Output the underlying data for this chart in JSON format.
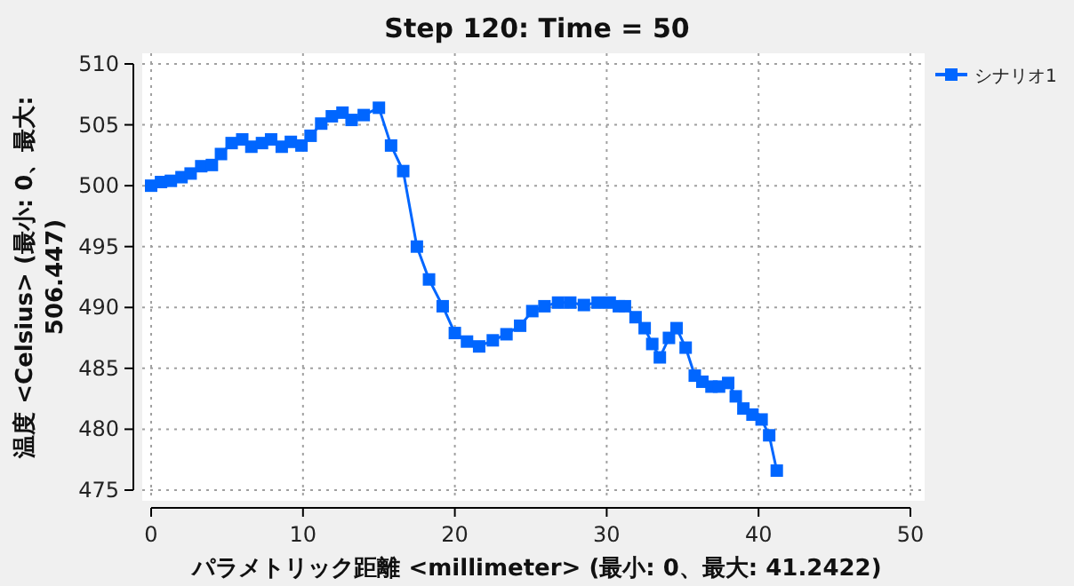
{
  "chart_data": {
    "type": "line",
    "title": "Step 120: Time = 50",
    "xlabel": "パラメトリック距離 <millimeter> (最小: 0、最大: 41.2422)",
    "ylabel": "温度 <Celsius> (最小: 0、最大: 506.447)",
    "xlim": [
      0,
      50
    ],
    "ylim": [
      475,
      510
    ],
    "xticks": [
      0,
      10,
      20,
      30,
      40,
      50
    ],
    "yticks": [
      475,
      480,
      485,
      490,
      495,
      500,
      505,
      510
    ],
    "grid": true,
    "legend": "top right",
    "marker": "square",
    "line_style": "solid",
    "series": [
      {
        "name": "シナリオ1",
        "color": "#0066ff",
        "x": [
          0,
          0.65,
          1.3,
          2.0,
          2.6,
          3.3,
          4.0,
          4.6,
          5.3,
          6.0,
          6.6,
          7.3,
          7.9,
          8.6,
          9.2,
          9.9,
          10.5,
          11.2,
          11.9,
          12.6,
          13.2,
          14.0,
          15.0,
          15.8,
          16.6,
          17.5,
          18.3,
          19.2,
          20.0,
          20.8,
          21.6,
          22.5,
          23.4,
          24.3,
          25.1,
          25.9,
          26.8,
          27.6,
          28.5,
          29.4,
          30.2,
          30.8,
          31.2,
          31.9,
          32.5,
          33.0,
          33.5,
          34.1,
          34.6,
          35.2,
          35.8,
          36.3,
          36.9,
          37.4,
          38.0,
          38.5,
          39.0,
          39.6,
          40.2,
          40.7,
          41.2
        ],
        "values": [
          500,
          500.3,
          500.4,
          500.7,
          501.0,
          501.6,
          501.7,
          502.6,
          503.5,
          503.8,
          503.2,
          503.5,
          503.8,
          503.2,
          503.6,
          503.3,
          504.1,
          505.1,
          505.7,
          506.0,
          505.4,
          505.8,
          506.4,
          503.3,
          501.2,
          495.0,
          492.3,
          490.1,
          487.9,
          487.2,
          486.8,
          487.3,
          487.8,
          488.5,
          489.7,
          490.1,
          490.4,
          490.4,
          490.2,
          490.4,
          490.4,
          490.1,
          490.1,
          489.2,
          488.3,
          487.0,
          485.9,
          487.5,
          488.3,
          486.7,
          484.4,
          483.9,
          483.5,
          483.5,
          483.8,
          482.7,
          481.7,
          481.2,
          480.8,
          479.5,
          476.6
        ]
      }
    ]
  }
}
